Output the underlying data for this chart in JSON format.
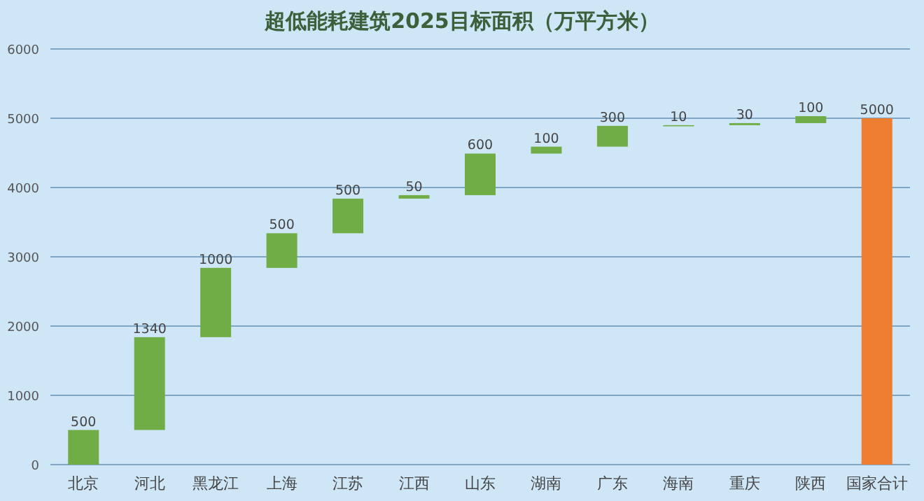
{
  "chart_data": {
    "type": "bar",
    "title": "超低能耗建筑2025目标面积（万平方米）",
    "categories": [
      "北京",
      "河北",
      "黑龙江",
      "上海",
      "江苏",
      "江西",
      "山东",
      "湖南",
      "广东",
      "海南",
      "重庆",
      "陕西",
      "国家合计"
    ],
    "values": [
      500,
      1340,
      1000,
      500,
      500,
      50,
      600,
      100,
      300,
      10,
      30,
      100,
      5000
    ],
    "base": [
      0,
      500,
      1840,
      2840,
      3340,
      3840,
      3890,
      4490,
      4590,
      4890,
      4900,
      4930,
      0
    ],
    "colors": [
      "#70ad47",
      "#70ad47",
      "#70ad47",
      "#70ad47",
      "#70ad47",
      "#70ad47",
      "#70ad47",
      "#70ad47",
      "#70ad47",
      "#70ad47",
      "#70ad47",
      "#70ad47",
      "#ed7d31"
    ],
    "ylim": [
      0,
      6000
    ],
    "yticks": [
      0,
      1000,
      2000,
      3000,
      4000,
      5000,
      6000
    ],
    "grid": "y",
    "data_labels": true
  }
}
